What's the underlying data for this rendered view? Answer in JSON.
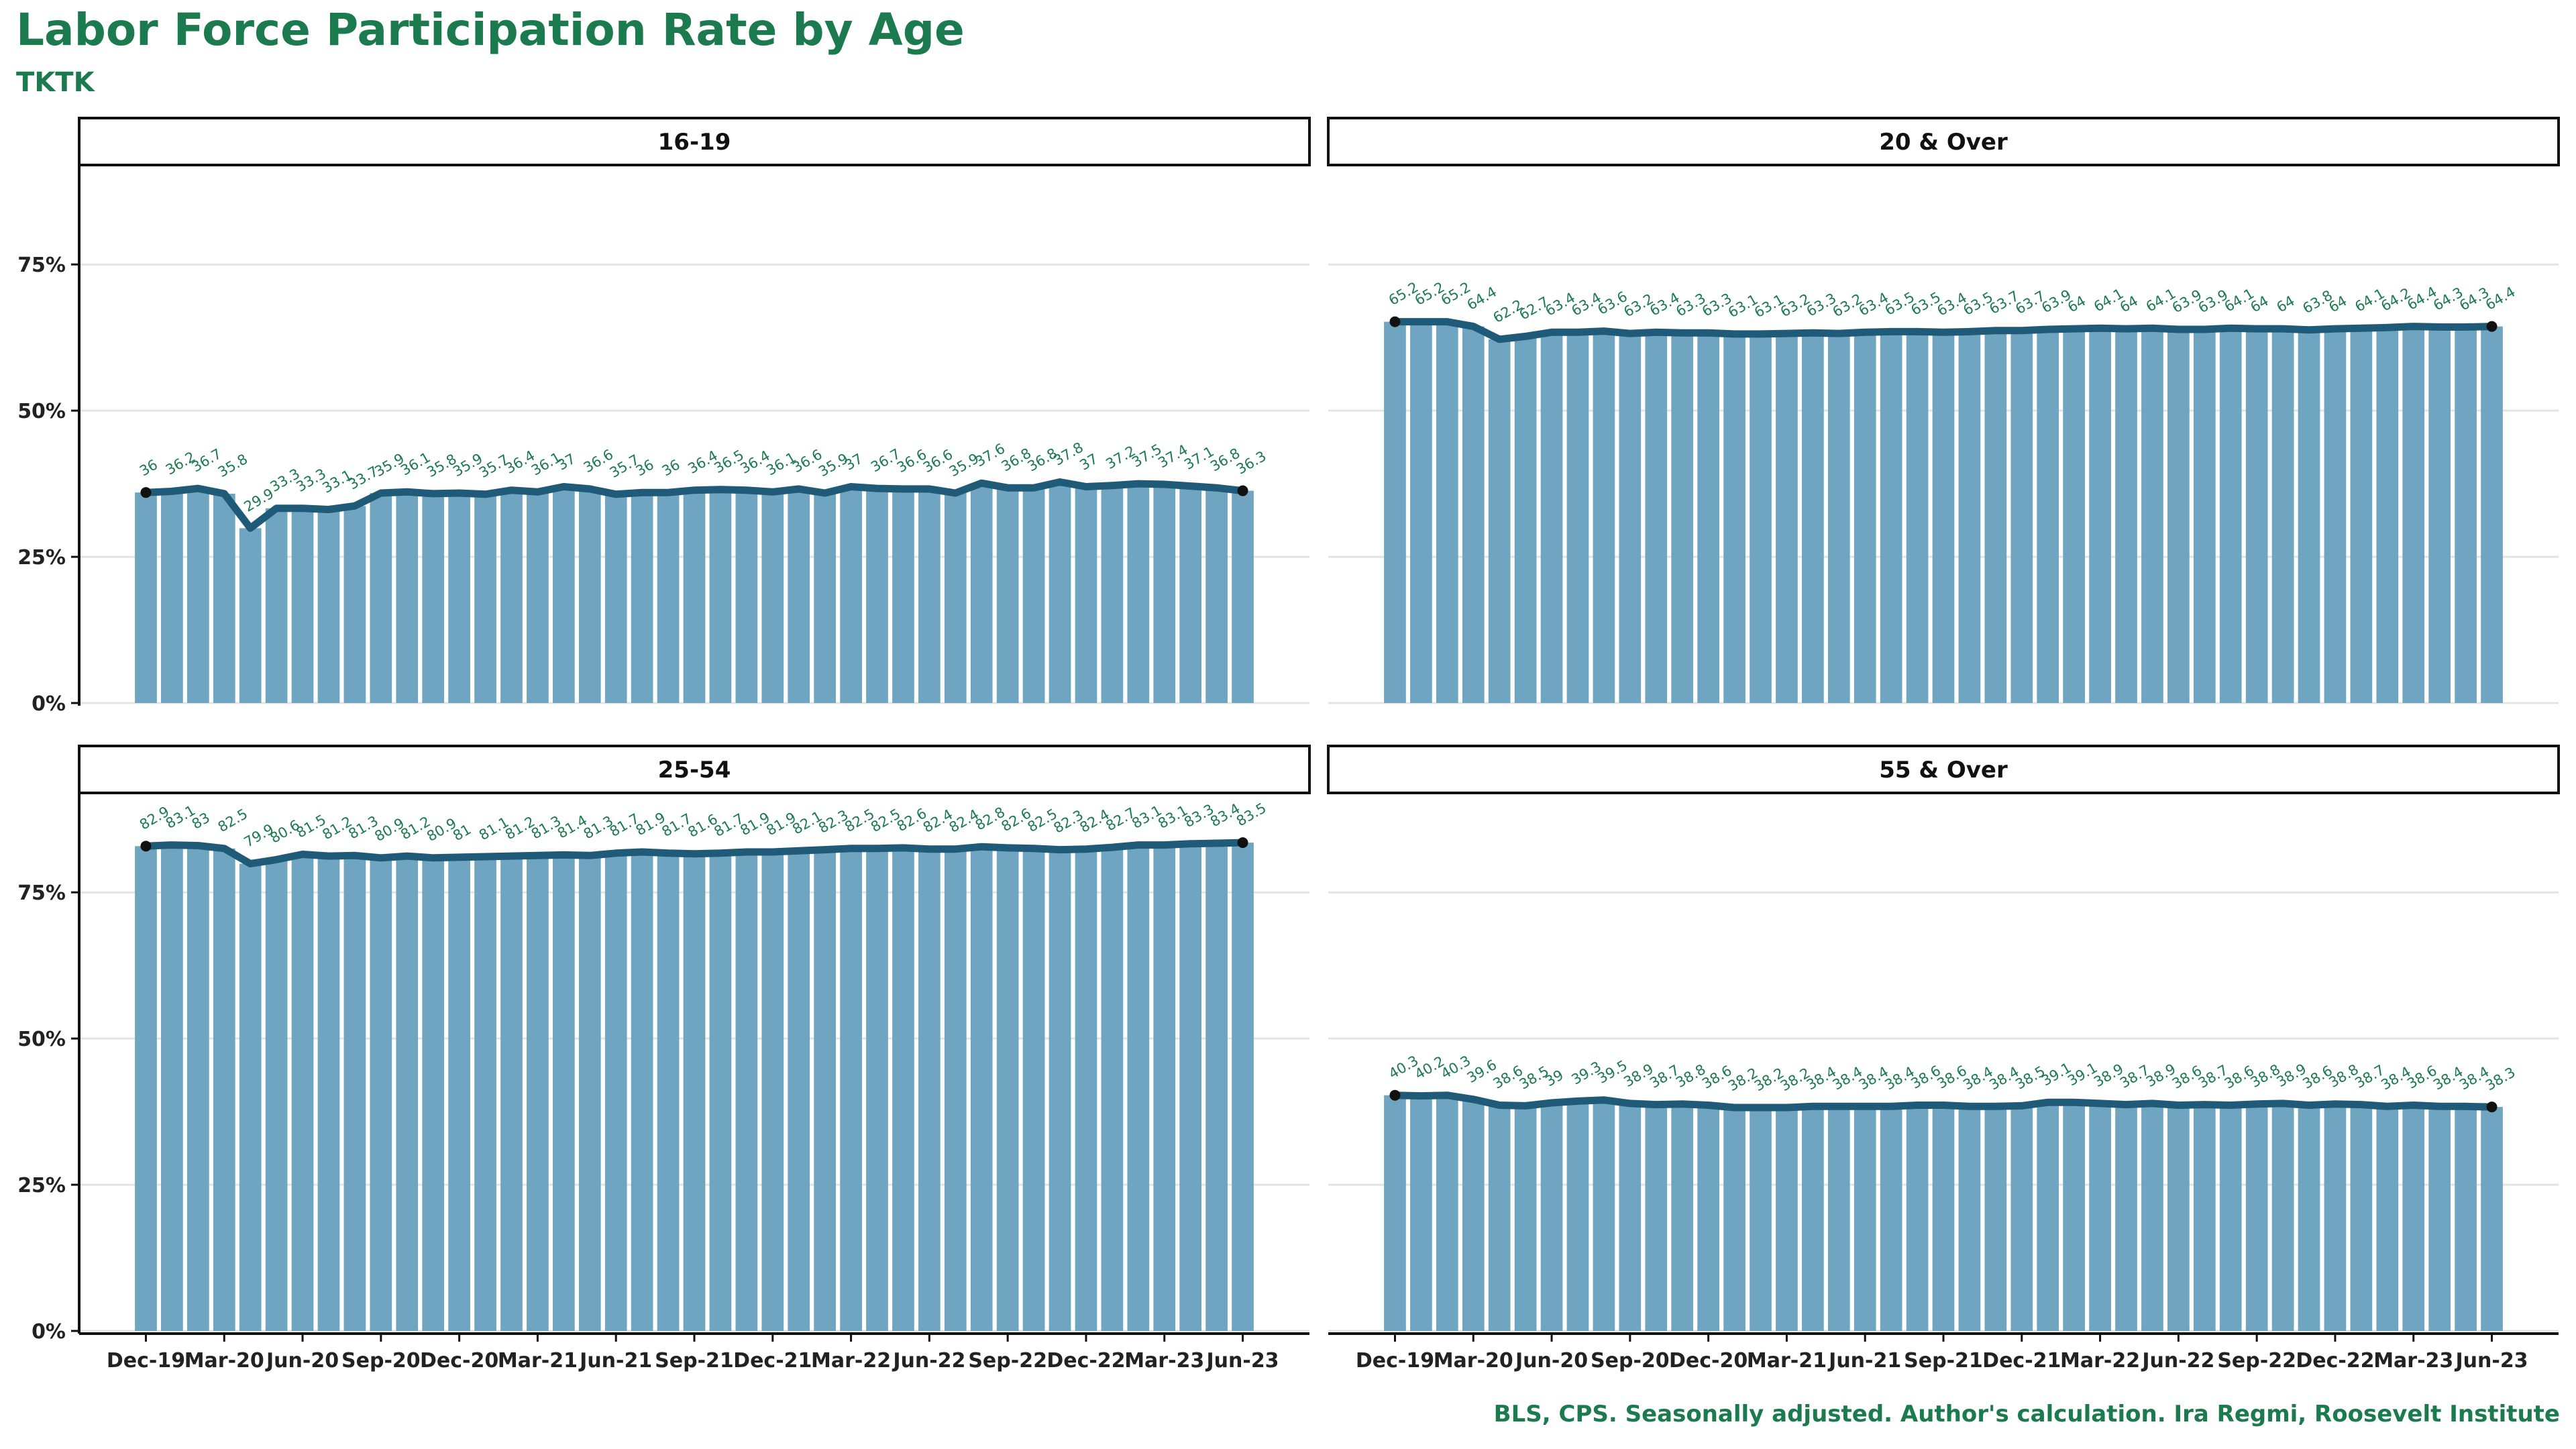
{
  "title": "Labor Force Participation Rate by Age",
  "subtitle": "TKTK",
  "caption": "BLS, CPS. Seasonally adjusted. Author's calculation. Ira Regmi, Roosevelt Institute",
  "colors": {
    "bar": "#6fa5c0",
    "line": "#1f5a78",
    "point": "#111111",
    "label": "#1b7a4e",
    "grid": "#e4e4e4"
  },
  "chart_data": {
    "type": "bar",
    "x": [
      "Dec-19",
      "Jan-20",
      "Feb-20",
      "Mar-20",
      "Apr-20",
      "May-20",
      "Jun-20",
      "Jul-20",
      "Aug-20",
      "Sep-20",
      "Oct-20",
      "Nov-20",
      "Dec-20",
      "Jan-21",
      "Feb-21",
      "Mar-21",
      "Apr-21",
      "May-21",
      "Jun-21",
      "Jul-21",
      "Aug-21",
      "Sep-21",
      "Oct-21",
      "Nov-21",
      "Dec-21",
      "Jan-22",
      "Feb-22",
      "Mar-22",
      "Apr-22",
      "May-22",
      "Jun-22",
      "Jul-22",
      "Aug-22",
      "Sep-22",
      "Oct-22",
      "Nov-22",
      "Dec-22",
      "Jan-23",
      "Feb-23",
      "Mar-23",
      "Apr-23",
      "May-23",
      "Jun-23"
    ],
    "x_tick_labels": [
      "Dec-19",
      "Mar-20",
      "Jun-20",
      "Sep-20",
      "Dec-20",
      "Mar-21",
      "Jun-21",
      "Sep-21",
      "Dec-21",
      "Mar-22",
      "Jun-22",
      "Sep-22",
      "Dec-22",
      "Mar-23",
      "Jun-23"
    ],
    "y_tick_labels": [
      "0%",
      "25%",
      "50%",
      "75%"
    ],
    "ylim": [
      0,
      92
    ],
    "grid": true,
    "panels": [
      {
        "name": "16-19",
        "values": [
          36,
          36.2,
          36.7,
          35.8,
          29.9,
          33.3,
          33.3,
          33.1,
          33.7,
          35.9,
          36.1,
          35.8,
          35.9,
          35.7,
          36.4,
          36.1,
          37,
          36.6,
          35.7,
          36,
          36,
          36.4,
          36.5,
          36.4,
          36.1,
          36.6,
          35.9,
          37,
          36.7,
          36.6,
          36.6,
          35.9,
          37.6,
          36.8,
          36.8,
          37.8,
          37,
          37.2,
          37.5,
          37.4,
          37.1,
          36.8,
          36.3
        ]
      },
      {
        "name": "20 & Over",
        "values": [
          65.2,
          65.2,
          65.2,
          64.4,
          62.2,
          62.7,
          63.4,
          63.4,
          63.6,
          63.2,
          63.4,
          63.3,
          63.3,
          63.1,
          63.1,
          63.2,
          63.3,
          63.2,
          63.4,
          63.5,
          63.5,
          63.4,
          63.5,
          63.7,
          63.7,
          63.9,
          64,
          64.1,
          64,
          64.1,
          63.9,
          63.9,
          64.1,
          64,
          64,
          63.8,
          64,
          64.1,
          64.2,
          64.4,
          64.3,
          64.3,
          64.4
        ]
      },
      {
        "name": "25-54",
        "values": [
          82.9,
          83.1,
          83,
          82.5,
          79.9,
          80.6,
          81.5,
          81.2,
          81.3,
          80.9,
          81.2,
          80.9,
          81,
          81.1,
          81.2,
          81.3,
          81.4,
          81.3,
          81.7,
          81.9,
          81.7,
          81.6,
          81.7,
          81.9,
          81.9,
          82.1,
          82.3,
          82.5,
          82.5,
          82.6,
          82.4,
          82.4,
          82.8,
          82.6,
          82.5,
          82.3,
          82.4,
          82.7,
          83.1,
          83.1,
          83.3,
          83.4,
          83.5
        ]
      },
      {
        "name": "55 & Over",
        "values": [
          40.3,
          40.2,
          40.3,
          39.6,
          38.6,
          38.5,
          39,
          39.3,
          39.5,
          38.9,
          38.7,
          38.8,
          38.6,
          38.2,
          38.2,
          38.2,
          38.4,
          38.4,
          38.4,
          38.4,
          38.6,
          38.6,
          38.4,
          38.4,
          38.5,
          39.1,
          39.1,
          38.9,
          38.7,
          38.9,
          38.6,
          38.7,
          38.6,
          38.8,
          38.9,
          38.6,
          38.8,
          38.7,
          38.4,
          38.6,
          38.4,
          38.4,
          38.3
        ]
      }
    ]
  }
}
